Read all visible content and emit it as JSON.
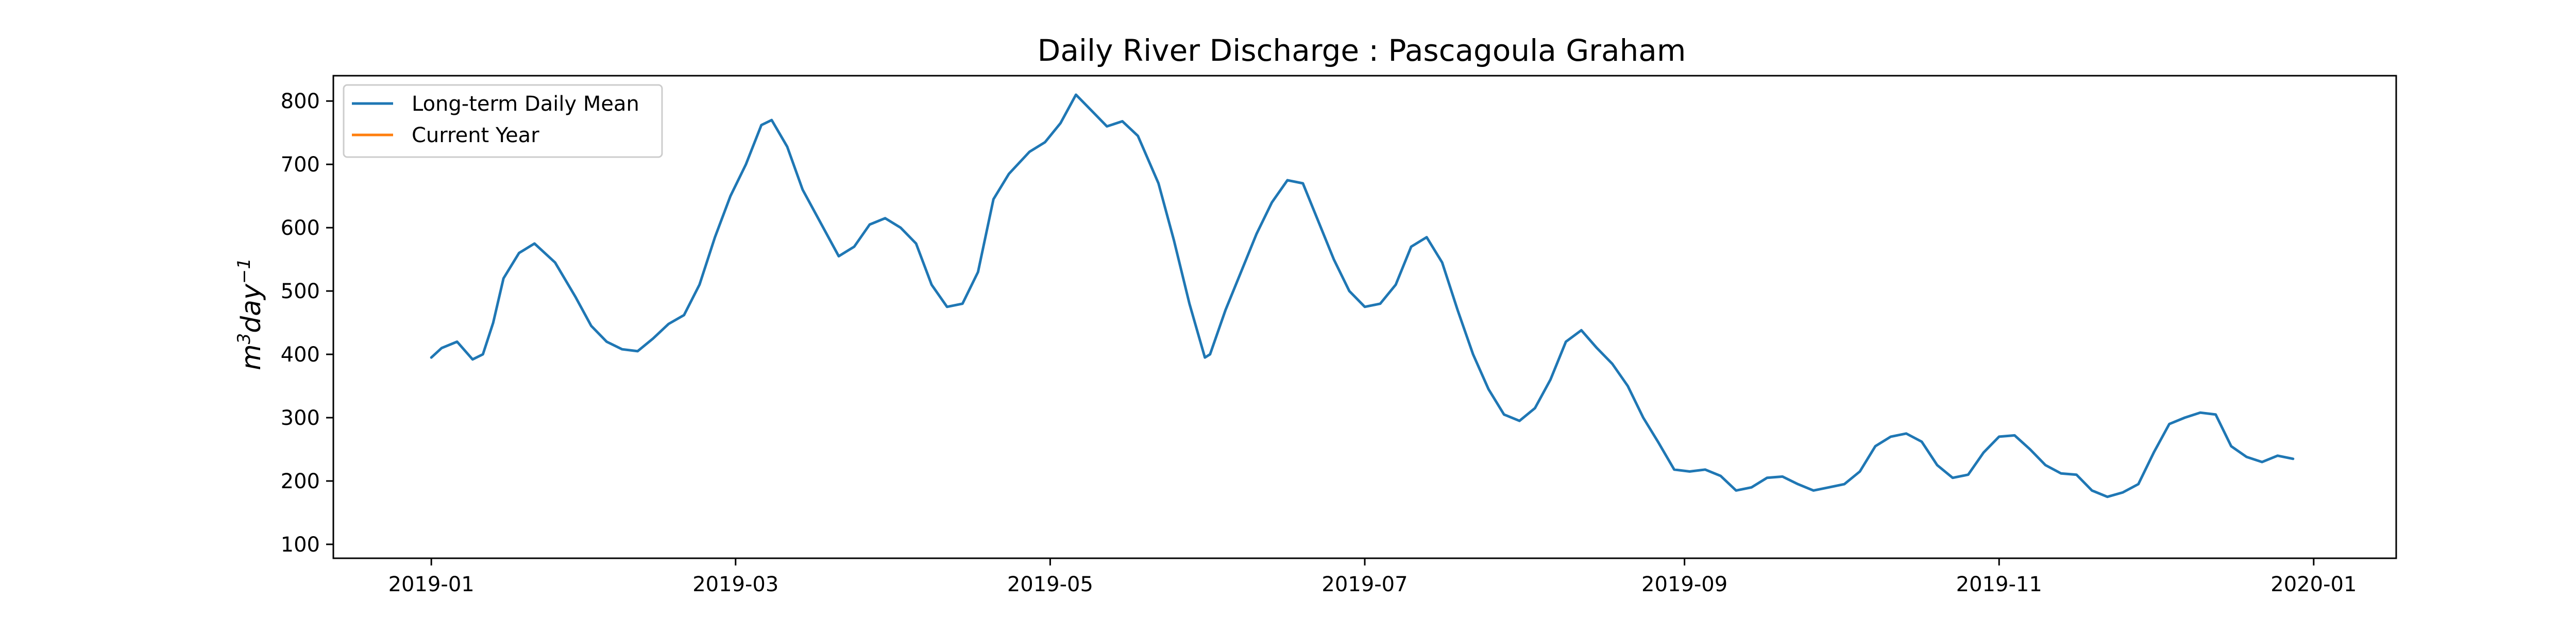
{
  "chart_data": {
    "type": "line",
    "title": "Daily River Discharge : Pascagoula Graham",
    "xlabel": "",
    "ylabel": "m³day⁻¹",
    "ylabel_parts": {
      "base": "m",
      "sup1": "3",
      "mid": "day",
      "sup2": "−1"
    },
    "x_tick_labels": [
      "2019-01",
      "2019-03",
      "2019-05",
      "2019-07",
      "2019-09",
      "2019-11",
      "2020-01"
    ],
    "x_tick_dates": [
      "2019-01-01",
      "2019-03-01",
      "2019-05-01",
      "2019-07-01",
      "2019-09-01",
      "2019-11-01",
      "2020-01-01"
    ],
    "xlim": [
      "2018-12-13",
      "2020-01-17"
    ],
    "y_ticks": [
      100,
      200,
      300,
      400,
      500,
      600,
      700,
      800
    ],
    "ylim": [
      78,
      840
    ],
    "grid": false,
    "legend_position": "top-left",
    "series": [
      {
        "name": "Long-term Daily Mean",
        "color": "#1f77b4",
        "points": [
          [
            "2019-01-01",
            395
          ],
          [
            "2019-01-03",
            410
          ],
          [
            "2019-01-06",
            420
          ],
          [
            "2019-01-09",
            392
          ],
          [
            "2019-01-11",
            400
          ],
          [
            "2019-01-13",
            450
          ],
          [
            "2019-01-15",
            520
          ],
          [
            "2019-01-18",
            560
          ],
          [
            "2019-01-21",
            575
          ],
          [
            "2019-01-25",
            545
          ],
          [
            "2019-01-29",
            490
          ],
          [
            "2019-02-01",
            445
          ],
          [
            "2019-02-04",
            420
          ],
          [
            "2019-02-07",
            408
          ],
          [
            "2019-02-10",
            405
          ],
          [
            "2019-02-13",
            425
          ],
          [
            "2019-02-16",
            448
          ],
          [
            "2019-02-19",
            462
          ],
          [
            "2019-02-22",
            510
          ],
          [
            "2019-02-25",
            585
          ],
          [
            "2019-02-28",
            650
          ],
          [
            "2019-03-03",
            700
          ],
          [
            "2019-03-06",
            762
          ],
          [
            "2019-03-08",
            770
          ],
          [
            "2019-03-11",
            728
          ],
          [
            "2019-03-14",
            660
          ],
          [
            "2019-03-18",
            600
          ],
          [
            "2019-03-21",
            555
          ],
          [
            "2019-03-24",
            570
          ],
          [
            "2019-03-27",
            605
          ],
          [
            "2019-03-30",
            615
          ],
          [
            "2019-04-02",
            600
          ],
          [
            "2019-04-05",
            575
          ],
          [
            "2019-04-08",
            510
          ],
          [
            "2019-04-11",
            475
          ],
          [
            "2019-04-14",
            480
          ],
          [
            "2019-04-17",
            530
          ],
          [
            "2019-04-20",
            645
          ],
          [
            "2019-04-23",
            685
          ],
          [
            "2019-04-27",
            720
          ],
          [
            "2019-04-30",
            735
          ],
          [
            "2019-05-03",
            765
          ],
          [
            "2019-05-06",
            810
          ],
          [
            "2019-05-09",
            785
          ],
          [
            "2019-05-12",
            760
          ],
          [
            "2019-05-15",
            768
          ],
          [
            "2019-05-18",
            745
          ],
          [
            "2019-05-22",
            670
          ],
          [
            "2019-05-25",
            580
          ],
          [
            "2019-05-28",
            480
          ],
          [
            "2019-05-31",
            395
          ],
          [
            "2019-06-01",
            400
          ],
          [
            "2019-06-04",
            470
          ],
          [
            "2019-06-07",
            530
          ],
          [
            "2019-06-10",
            590
          ],
          [
            "2019-06-13",
            640
          ],
          [
            "2019-06-16",
            675
          ],
          [
            "2019-06-19",
            670
          ],
          [
            "2019-06-22",
            610
          ],
          [
            "2019-06-25",
            550
          ],
          [
            "2019-06-28",
            500
          ],
          [
            "2019-07-01",
            475
          ],
          [
            "2019-07-04",
            480
          ],
          [
            "2019-07-07",
            510
          ],
          [
            "2019-07-10",
            570
          ],
          [
            "2019-07-13",
            585
          ],
          [
            "2019-07-16",
            545
          ],
          [
            "2019-07-19",
            470
          ],
          [
            "2019-07-22",
            400
          ],
          [
            "2019-07-25",
            345
          ],
          [
            "2019-07-28",
            305
          ],
          [
            "2019-07-31",
            295
          ],
          [
            "2019-08-03",
            315
          ],
          [
            "2019-08-06",
            360
          ],
          [
            "2019-08-09",
            420
          ],
          [
            "2019-08-12",
            438
          ],
          [
            "2019-08-15",
            410
          ],
          [
            "2019-08-18",
            385
          ],
          [
            "2019-08-21",
            350
          ],
          [
            "2019-08-24",
            300
          ],
          [
            "2019-08-27",
            260
          ],
          [
            "2019-08-30",
            218
          ],
          [
            "2019-09-02",
            215
          ],
          [
            "2019-09-05",
            218
          ],
          [
            "2019-09-08",
            208
          ],
          [
            "2019-09-11",
            185
          ],
          [
            "2019-09-14",
            190
          ],
          [
            "2019-09-17",
            205
          ],
          [
            "2019-09-20",
            207
          ],
          [
            "2019-09-23",
            195
          ],
          [
            "2019-09-26",
            185
          ],
          [
            "2019-09-29",
            190
          ],
          [
            "2019-10-02",
            195
          ],
          [
            "2019-10-05",
            215
          ],
          [
            "2019-10-08",
            255
          ],
          [
            "2019-10-11",
            270
          ],
          [
            "2019-10-14",
            275
          ],
          [
            "2019-10-17",
            262
          ],
          [
            "2019-10-20",
            225
          ],
          [
            "2019-10-23",
            205
          ],
          [
            "2019-10-26",
            210
          ],
          [
            "2019-10-29",
            245
          ],
          [
            "2019-11-01",
            270
          ],
          [
            "2019-11-04",
            272
          ],
          [
            "2019-11-07",
            250
          ],
          [
            "2019-11-10",
            225
          ],
          [
            "2019-11-13",
            212
          ],
          [
            "2019-11-16",
            210
          ],
          [
            "2019-11-19",
            185
          ],
          [
            "2019-11-22",
            175
          ],
          [
            "2019-11-25",
            182
          ],
          [
            "2019-11-28",
            195
          ],
          [
            "2019-12-01",
            245
          ],
          [
            "2019-12-04",
            290
          ],
          [
            "2019-12-07",
            300
          ],
          [
            "2019-12-10",
            308
          ],
          [
            "2019-12-13",
            305
          ],
          [
            "2019-12-16",
            255
          ],
          [
            "2019-12-19",
            238
          ],
          [
            "2019-12-22",
            230
          ],
          [
            "2019-12-25",
            240
          ],
          [
            "2019-12-28",
            235
          ]
        ]
      },
      {
        "name": "Current Year",
        "color": "#ff7f0e",
        "points": []
      }
    ]
  }
}
